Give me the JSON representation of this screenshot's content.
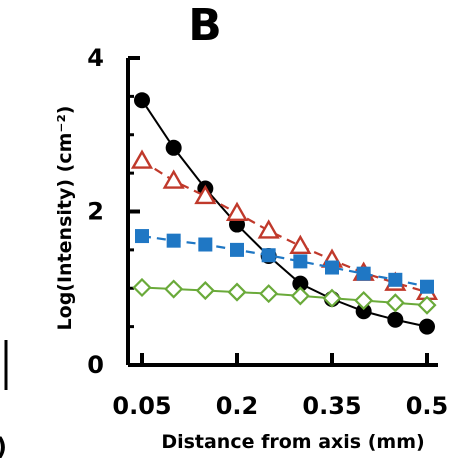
{
  "panel_label": "B",
  "left_panel_fragment": ")",
  "chart_data": {
    "type": "line",
    "xlabel": "Distance from axis (mm)",
    "ylabel": "Log(Intensity) (cm⁻²)",
    "xlim": [
      0.05,
      0.5
    ],
    "ylim": [
      0,
      4
    ],
    "x_ticks": [
      0.05,
      0.2,
      0.35,
      0.5
    ],
    "x_tick_labels": [
      "0.05",
      "0.2",
      "0.35",
      "0.5"
    ],
    "y_ticks": [
      0,
      2,
      4
    ],
    "y_tick_labels": [
      "0",
      "2",
      "4"
    ],
    "grid": false,
    "legend": "none",
    "series": [
      {
        "marker": "filled-circle",
        "line": "solid",
        "color": "#000000",
        "x": [
          0.05,
          0.1,
          0.15,
          0.2,
          0.25,
          0.3,
          0.35,
          0.4,
          0.45,
          0.5
        ],
        "values": [
          3.45,
          2.83,
          2.3,
          1.83,
          1.42,
          1.06,
          0.86,
          0.7,
          0.59,
          0.5
        ]
      },
      {
        "marker": "open-triangle",
        "line": "dashed",
        "color": "#c0392b",
        "x": [
          0.05,
          0.1,
          0.15,
          0.2,
          0.25,
          0.3,
          0.35,
          0.4,
          0.45,
          0.5
        ],
        "values": [
          2.66,
          2.4,
          2.2,
          1.98,
          1.75,
          1.55,
          1.37,
          1.2,
          1.07,
          0.95
        ]
      },
      {
        "marker": "filled-square",
        "line": "dashed",
        "color": "#1f77c4",
        "x": [
          0.05,
          0.1,
          0.15,
          0.2,
          0.25,
          0.3,
          0.35,
          0.4,
          0.45,
          0.5
        ],
        "values": [
          1.68,
          1.62,
          1.57,
          1.5,
          1.43,
          1.35,
          1.27,
          1.19,
          1.11,
          1.02
        ]
      },
      {
        "marker": "open-diamond",
        "line": "solid",
        "color": "#6aaa3a",
        "x": [
          0.05,
          0.1,
          0.15,
          0.2,
          0.25,
          0.3,
          0.35,
          0.4,
          0.45,
          0.5
        ],
        "values": [
          1.01,
          0.99,
          0.97,
          0.95,
          0.93,
          0.9,
          0.87,
          0.84,
          0.81,
          0.78
        ]
      }
    ]
  }
}
